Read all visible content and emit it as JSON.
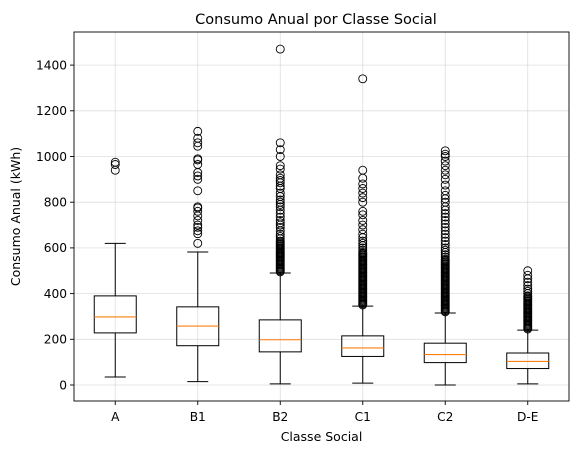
{
  "chart_data": {
    "type": "box",
    "title": "Consumo Anual por Classe Social",
    "xlabel": "Classe Social",
    "ylabel": "Consumo Anual (kWh)",
    "ylim": [
      -70,
      1545
    ],
    "yticks": [
      0,
      200,
      400,
      600,
      800,
      1000,
      1200,
      1400
    ],
    "grid": true,
    "categories": [
      "A",
      "B1",
      "B2",
      "C1",
      "C2",
      "D-E"
    ],
    "boxes": [
      {
        "category": "A",
        "whisker_low": 35,
        "q1": 228,
        "median": 298,
        "q3": 390,
        "whisker_high": 620,
        "outliers": [
          940,
          965,
          975
        ]
      },
      {
        "category": "B1",
        "whisker_low": 15,
        "q1": 172,
        "median": 258,
        "q3": 342,
        "whisker_high": 582,
        "outliers": [
          620,
          662,
          675,
          690,
          700,
          720,
          740,
          760,
          775,
          780,
          850,
          900,
          915,
          930,
          965,
          985,
          990,
          1045,
          1060,
          1080,
          1110
        ]
      },
      {
        "category": "B2",
        "whisker_low": 5,
        "q1": 145,
        "median": 198,
        "q3": 285,
        "whisker_high": 490,
        "outliers": [
          495,
          500,
          505,
          510,
          515,
          520,
          525,
          530,
          535,
          540,
          545,
          550,
          555,
          560,
          565,
          570,
          575,
          580,
          585,
          590,
          595,
          600,
          605,
          610,
          615,
          620,
          625,
          630,
          640,
          650,
          660,
          675,
          690,
          700,
          710,
          720,
          735,
          750,
          765,
          780,
          790,
          800,
          810,
          825,
          840,
          860,
          870,
          885,
          895,
          905,
          920,
          945,
          960,
          1000,
          1030,
          1060,
          1470
        ]
      },
      {
        "category": "C1",
        "whisker_low": 8,
        "q1": 125,
        "median": 162,
        "q3": 215,
        "whisker_high": 345,
        "outliers": [
          350,
          355,
          360,
          365,
          370,
          375,
          380,
          385,
          390,
          395,
          400,
          405,
          410,
          415,
          420,
          425,
          430,
          435,
          440,
          445,
          450,
          455,
          460,
          465,
          470,
          475,
          480,
          485,
          490,
          495,
          500,
          505,
          510,
          515,
          520,
          525,
          530,
          535,
          540,
          545,
          550,
          555,
          560,
          565,
          570,
          575,
          580,
          590,
          600,
          610,
          620,
          630,
          645,
          660,
          680,
          700,
          720,
          745,
          760,
          800,
          820,
          840,
          860,
          880,
          905,
          940,
          1340
        ]
      },
      {
        "category": "C2",
        "whisker_low": 0,
        "q1": 98,
        "median": 133,
        "q3": 183,
        "whisker_high": 315,
        "outliers": [
          320,
          325,
          330,
          335,
          340,
          345,
          350,
          355,
          360,
          365,
          370,
          375,
          380,
          385,
          390,
          395,
          400,
          405,
          410,
          415,
          420,
          425,
          430,
          435,
          440,
          445,
          450,
          455,
          460,
          465,
          470,
          475,
          480,
          485,
          490,
          495,
          500,
          505,
          510,
          515,
          520,
          525,
          530,
          535,
          540,
          545,
          550,
          560,
          570,
          580,
          590,
          600,
          615,
          630,
          645,
          660,
          675,
          690,
          705,
          720,
          735,
          750,
          765,
          780,
          800,
          815,
          830,
          850,
          875,
          900,
          920,
          940,
          960,
          980,
          1000,
          1010,
          1025
        ]
      },
      {
        "category": "D-E",
        "whisker_low": 5,
        "q1": 72,
        "median": 103,
        "q3": 140,
        "whisker_high": 240,
        "outliers": [
          245,
          250,
          255,
          260,
          265,
          270,
          275,
          280,
          285,
          290,
          295,
          300,
          305,
          310,
          315,
          320,
          325,
          330,
          335,
          340,
          345,
          350,
          355,
          360,
          365,
          370,
          375,
          380,
          385,
          390,
          400,
          410,
          420,
          435,
          450,
          465,
          480,
          500
        ]
      }
    ],
    "colors": {
      "median": "#ff7f0e",
      "box": "#000000",
      "grid": "#b0b0b0",
      "background": "#ffffff"
    }
  }
}
